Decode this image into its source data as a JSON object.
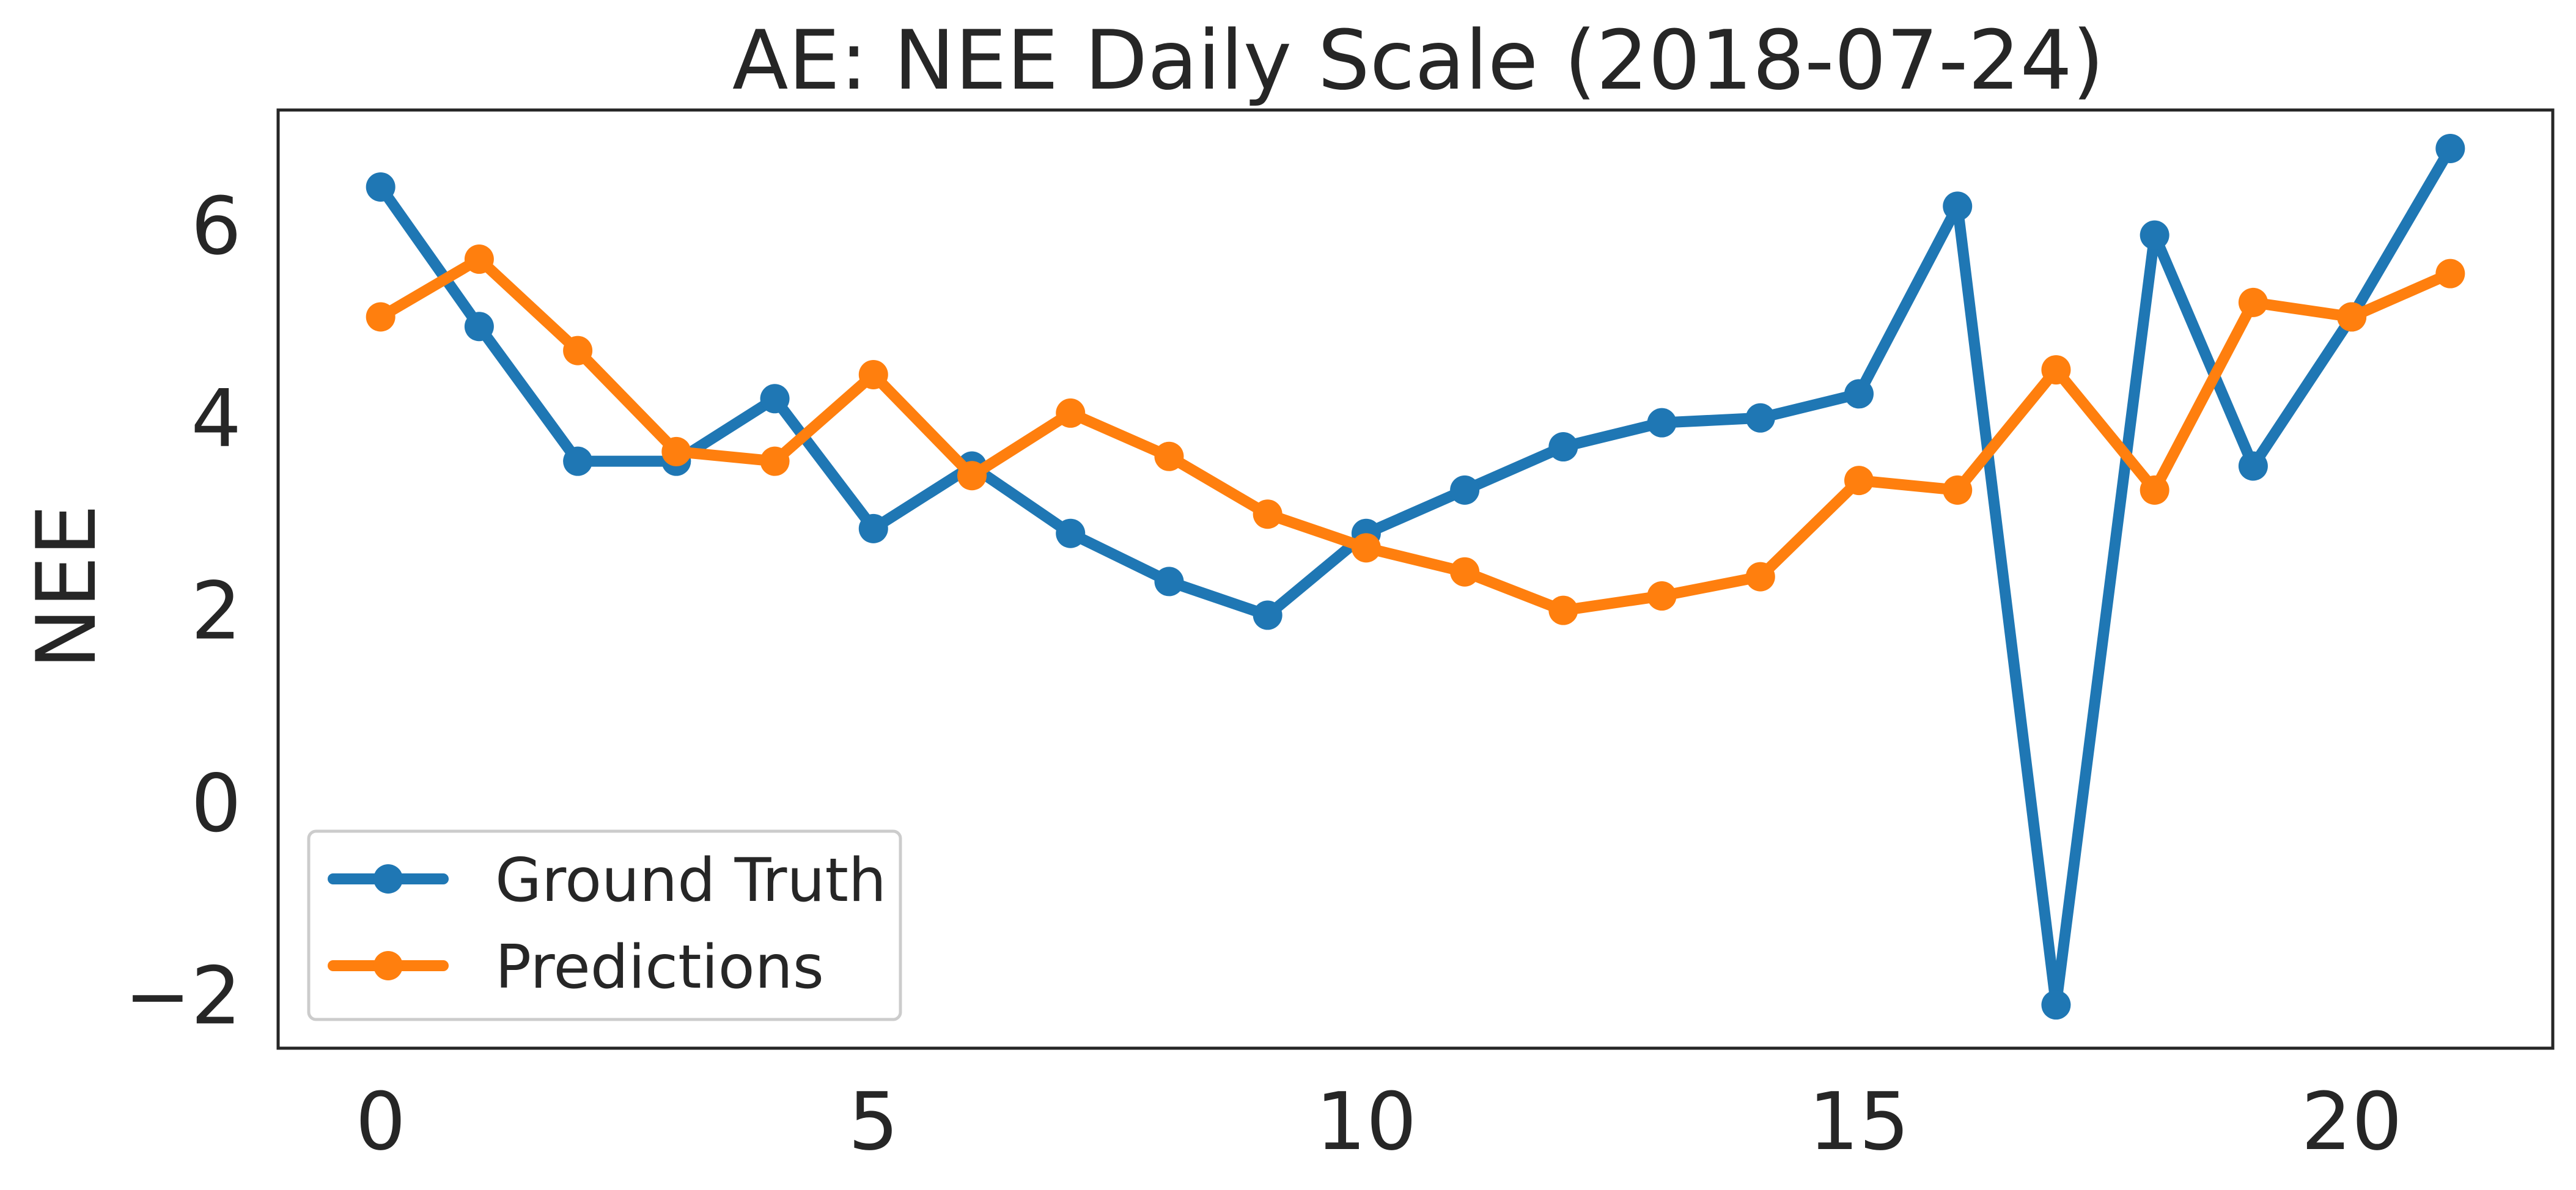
{
  "chart_data": {
    "type": "line",
    "title": "AE: NEE Daily Scale (2018-07-24)",
    "xlabel": "",
    "ylabel": "NEE",
    "xlim": [
      -1.04,
      22.04
    ],
    "ylim": [
      -2.55,
      7.2
    ],
    "xticks": [
      0,
      5,
      10,
      15,
      20
    ],
    "yticks": [
      -2,
      0,
      2,
      4,
      6
    ],
    "ytick_labels": [
      "−2",
      "0",
      "2",
      "4",
      "6"
    ],
    "grid": false,
    "legend_position": "lower-left",
    "x": [
      0,
      1,
      2,
      3,
      4,
      5,
      6,
      7,
      8,
      9,
      10,
      11,
      12,
      13,
      14,
      15,
      16,
      17,
      18,
      19,
      20,
      21
    ],
    "series": [
      {
        "name": "Ground Truth",
        "color": "#1f77b4",
        "values": [
          6.4,
          4.95,
          3.55,
          3.55,
          4.2,
          2.85,
          3.5,
          2.8,
          2.3,
          1.95,
          2.8,
          3.25,
          3.7,
          3.95,
          4.0,
          4.25,
          6.2,
          -2.1,
          5.9,
          3.5,
          5.05,
          6.8
        ]
      },
      {
        "name": "Predictions",
        "color": "#ff7f0e",
        "values": [
          5.05,
          5.65,
          4.7,
          3.65,
          3.55,
          4.45,
          3.4,
          4.05,
          3.6,
          3.0,
          2.65,
          2.4,
          2.0,
          2.15,
          2.35,
          3.35,
          3.25,
          4.5,
          3.25,
          5.2,
          5.05,
          5.5
        ]
      }
    ]
  }
}
